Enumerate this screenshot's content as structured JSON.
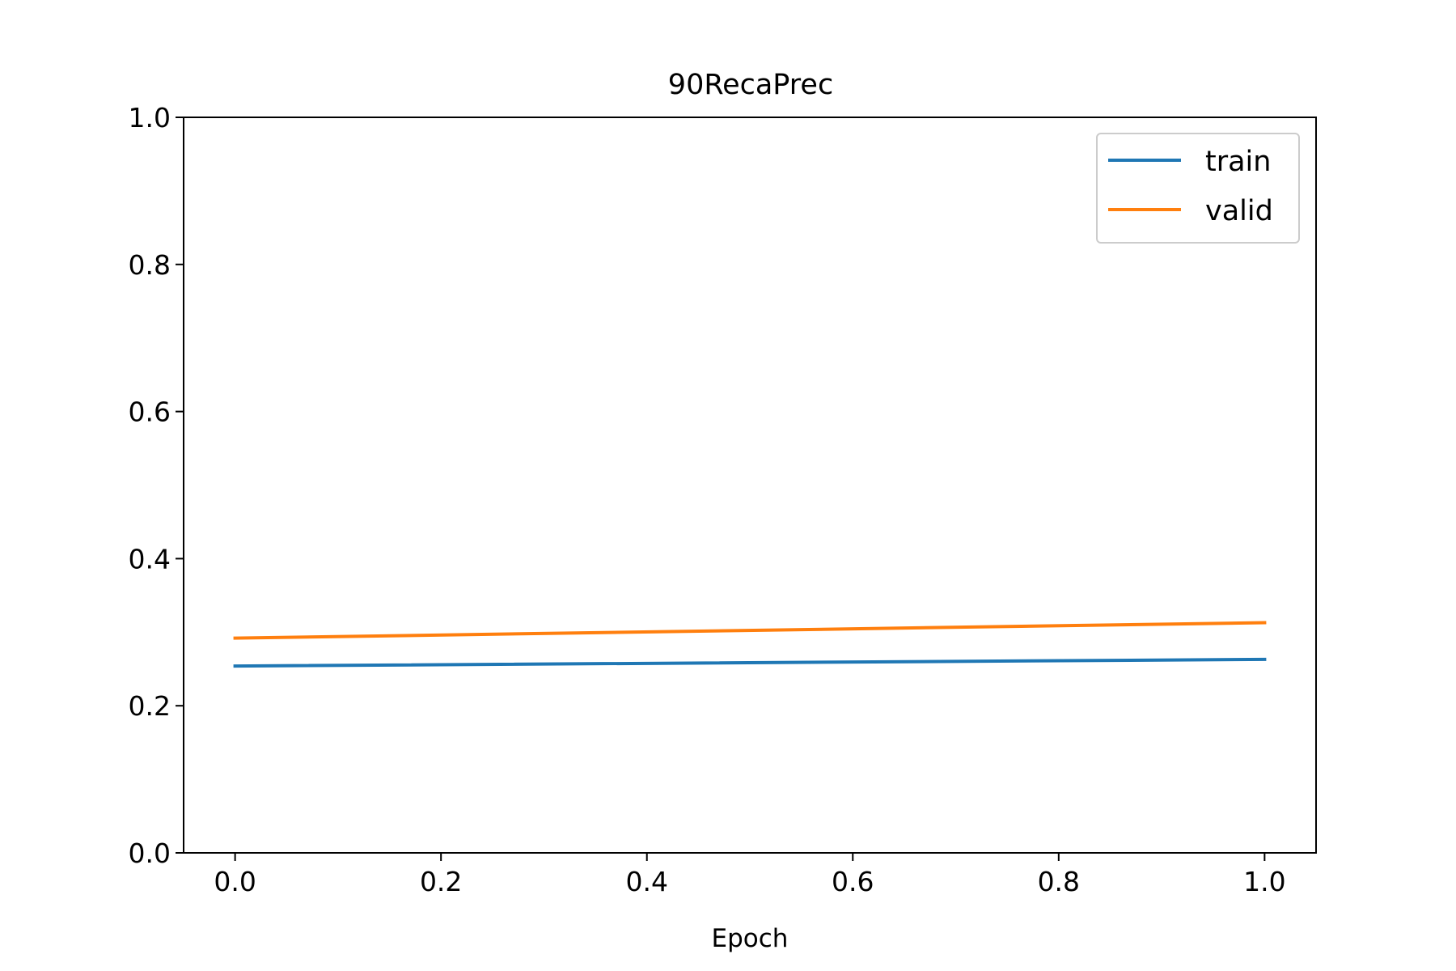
{
  "chart_data": {
    "type": "line",
    "title": "90RecaPrec",
    "xlabel": "Epoch",
    "ylabel": "",
    "xlim": [
      -0.05,
      1.05
    ],
    "ylim": [
      0.0,
      1.0
    ],
    "xticks": [
      0.0,
      0.2,
      0.4,
      0.6,
      0.8,
      1.0
    ],
    "xtick_labels": [
      "0.0",
      "0.2",
      "0.4",
      "0.6",
      "0.8",
      "1.0"
    ],
    "yticks": [
      0.0,
      0.2,
      0.4,
      0.6,
      0.8,
      1.0
    ],
    "ytick_labels": [
      "0.0",
      "0.2",
      "0.4",
      "0.6",
      "0.8",
      "1.0"
    ],
    "grid": false,
    "legend_position": "top-right",
    "series": [
      {
        "name": "train",
        "color": "#1f77b4",
        "x": [
          0,
          1
        ],
        "y": [
          0.254,
          0.263
        ]
      },
      {
        "name": "valid",
        "color": "#ff7f0e",
        "x": [
          0,
          1
        ],
        "y": [
          0.292,
          0.313
        ]
      }
    ]
  }
}
